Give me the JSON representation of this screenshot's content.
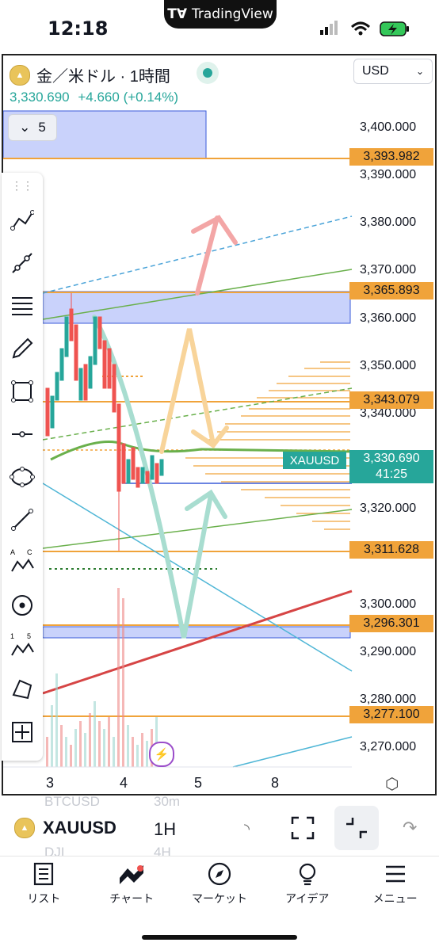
{
  "status_bar": {
    "time": "12:18",
    "brand": "TradingView"
  },
  "header": {
    "symbol_title": "金／米ドル · 1時間",
    "price": "3,330.690",
    "change": "+4.660 (+0.14%)",
    "currency": "USD",
    "collapse_count": "5"
  },
  "axis": {
    "labels": [
      "3,400.000",
      "3,390.000",
      "3,380.000",
      "3,370.000",
      "3,360.000",
      "3,350.000",
      "3,340.000",
      "3,320.000",
      "3,300.000",
      "3,290.000",
      "3,280.000",
      "3,270.000"
    ],
    "tags": [
      "3,393.982",
      "3,365.893",
      "3,343.079",
      "3,311.628",
      "3,296.301",
      "3,277.100"
    ],
    "current_symbol": "XAUUSD",
    "current_price": "3,330.690",
    "countdown": "41:25"
  },
  "time_axis": [
    "3",
    "4",
    "5",
    "8"
  ],
  "bottom": {
    "symbol": "XAUUSD",
    "timeframe": "1H",
    "ghost_symbols": [
      "BTCUSD",
      "DJI"
    ],
    "ghost_timeframes": [
      "30m",
      "4H"
    ]
  },
  "nav": [
    {
      "label": "リスト",
      "icon": "list-icon"
    },
    {
      "label": "チャート",
      "icon": "chart-icon"
    },
    {
      "label": "マーケット",
      "icon": "compass-icon"
    },
    {
      "label": "アイデア",
      "icon": "bulb-icon"
    },
    {
      "label": "メニュー",
      "icon": "menu-icon"
    }
  ],
  "colors": {
    "up": "#26a69a",
    "down": "#ef5350",
    "level": "#f0a33a",
    "zone": "#c9d2fb"
  }
}
